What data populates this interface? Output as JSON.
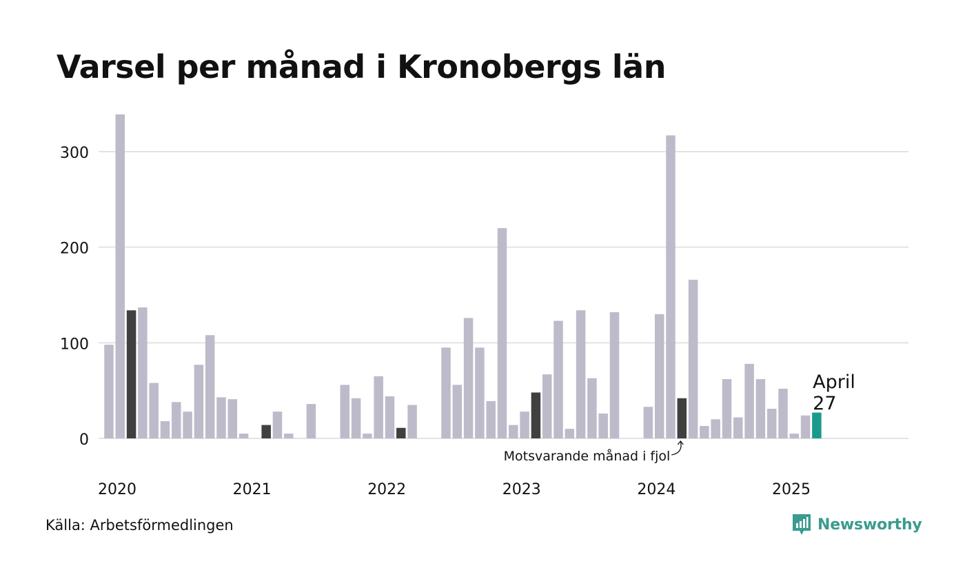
{
  "title": "Varsel per månad i Kronobergs län",
  "source": "Källa: Arbetsförmedlingen",
  "logo_text": "Newsworthy",
  "logo_icon": "bar-chart-speech-bubble-icon",
  "colors": {
    "bar_default": "#bdbbc9",
    "bar_same_month_previous_year": "#404040",
    "bar_current": "#1a9a8c",
    "grid": "#e3e3e3",
    "logo": "#3a9b8e"
  },
  "chart_data": {
    "type": "bar",
    "title": "Varsel per månad i Kronobergs län",
    "xlabel": "",
    "ylabel": "",
    "ylim": [
      0,
      340
    ],
    "yticks": [
      0,
      100,
      200,
      300
    ],
    "grid": true,
    "x_tick_labels": [
      "2020",
      "2021",
      "2022",
      "2023",
      "2024",
      "2025"
    ],
    "start_month": "2020-01",
    "months": [
      "2020-01",
      "2020-02",
      "2020-03",
      "2020-04",
      "2020-05",
      "2020-06",
      "2020-07",
      "2020-08",
      "2020-09",
      "2020-10",
      "2020-11",
      "2020-12",
      "2021-01",
      "2021-02",
      "2021-03",
      "2021-04",
      "2021-05",
      "2021-06",
      "2021-07",
      "2021-08",
      "2021-09",
      "2021-10",
      "2021-11",
      "2021-12",
      "2022-01",
      "2022-02",
      "2022-03",
      "2022-04",
      "2022-05",
      "2022-06",
      "2022-07",
      "2022-08",
      "2022-09",
      "2022-10",
      "2022-11",
      "2022-12",
      "2023-01",
      "2023-02",
      "2023-03",
      "2023-04",
      "2023-05",
      "2023-06",
      "2023-07",
      "2023-08",
      "2023-09",
      "2023-10",
      "2023-11",
      "2023-12",
      "2024-01",
      "2024-02",
      "2024-03",
      "2024-04",
      "2024-05",
      "2024-06",
      "2024-07",
      "2024-08",
      "2024-09",
      "2024-10",
      "2024-11",
      "2024-12",
      "2025-01",
      "2025-02",
      "2025-03",
      "2025-04",
      "2025-05",
      "2025-06",
      "2025-07",
      "2025-08",
      "2025-09",
      "2025-10",
      "2025-11",
      "2025-12"
    ],
    "values": [
      98,
      339,
      134,
      137,
      58,
      18,
      38,
      28,
      77,
      108,
      43,
      41,
      5,
      0,
      14,
      28,
      5,
      0,
      36,
      0,
      0,
      56,
      42,
      5,
      65,
      44,
      11,
      35,
      0,
      0,
      95,
      56,
      126,
      95,
      39,
      220,
      14,
      28,
      48,
      67,
      123,
      10,
      134,
      63,
      26,
      132,
      0,
      0,
      33,
      130,
      317,
      42,
      166,
      13,
      20,
      62,
      22,
      78,
      62,
      31,
      52,
      5,
      24,
      27,
      null,
      null,
      null,
      null,
      null,
      null,
      null,
      null
    ],
    "highlight_previous_years_indices": [
      2,
      14,
      26,
      38,
      51
    ],
    "current_index": 63,
    "current_label": {
      "month": "April",
      "value": "27"
    },
    "annotation": "Motsvarande månad i fjol"
  }
}
